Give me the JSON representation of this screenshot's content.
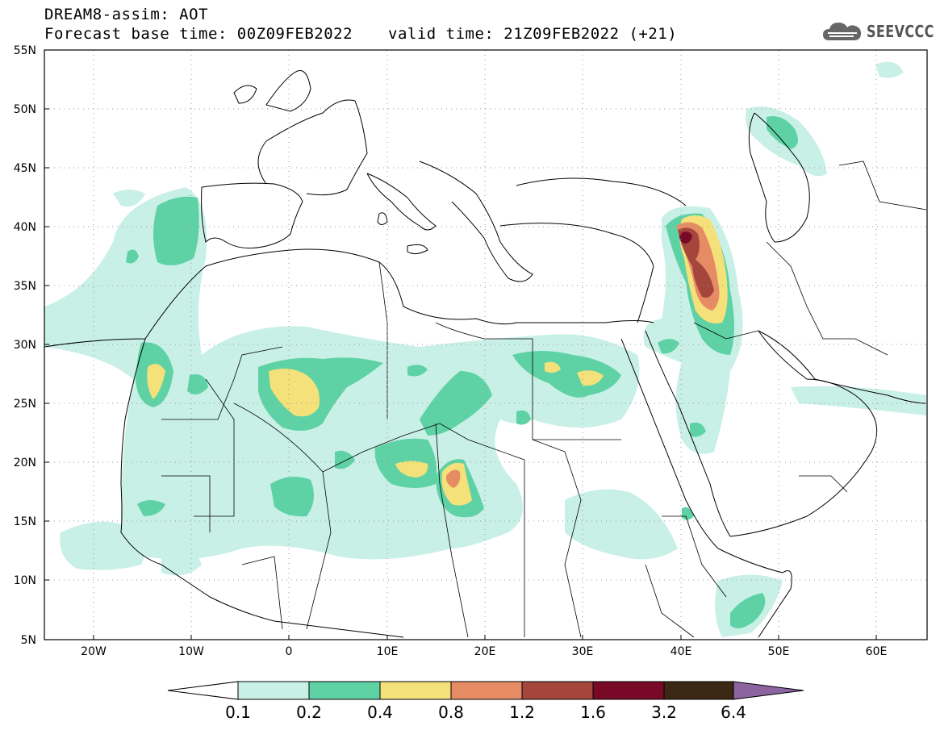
{
  "header": {
    "title": "DREAM8-assim: AOT",
    "base_time": "Forecast base time: 00Z09FEB2022",
    "valid_time": "valid time: 21Z09FEB2022 (+21)",
    "logo_text": "SEEVCCC"
  },
  "map": {
    "lon_range": [
      -25,
      65
    ],
    "lat_range": [
      5,
      55
    ],
    "lat_ticks": [
      "55N",
      "50N",
      "45N",
      "40N",
      "35N",
      "30N",
      "25N",
      "20N",
      "15N",
      "10N",
      "5N"
    ],
    "lon_ticks": [
      "20W",
      "10W",
      "0",
      "10E",
      "20E",
      "30E",
      "40E",
      "50E",
      "60E"
    ]
  },
  "colorbar": {
    "labels": [
      "0.1",
      "0.2",
      "0.4",
      "0.8",
      "1.2",
      "1.6",
      "3.2",
      "6.4"
    ],
    "colors": [
      "#ffffff",
      "#c8f0e6",
      "#5fd2a5",
      "#f5e17a",
      "#e68c64",
      "#a5463c",
      "#780a28",
      "#3c2814",
      "#8c64a0"
    ]
  }
}
